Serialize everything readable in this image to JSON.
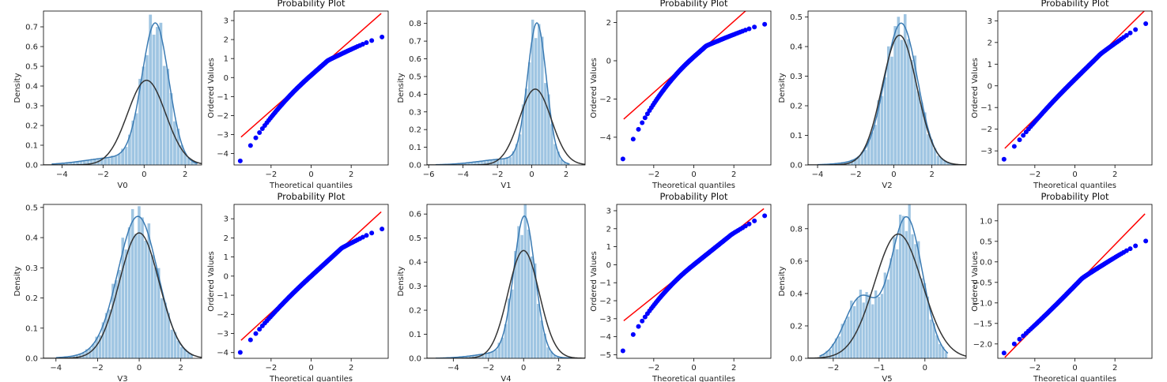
{
  "chart_data": [
    {
      "kind": "hist",
      "var": "V0",
      "type": "histogram",
      "xlabel": "V0",
      "ylabel": "Density",
      "xlim": [
        -4.9,
        2.8
      ],
      "ylim": [
        0,
        0.78
      ],
      "xticks": [
        -4,
        -2,
        0,
        2
      ],
      "yticks": [
        0,
        0.1,
        0.2,
        0.3,
        0.4,
        0.5,
        0.6,
        0.7
      ],
      "bin_range": [
        -4.5,
        2.6
      ],
      "peak": 0.55,
      "peak_sd": 0.65,
      "tail_w": 0.12,
      "tail_mean": -1.2,
      "tail_sd": 1.6,
      "norm_mu": 0.12,
      "norm_sd": 0.93
    },
    {
      "kind": "qq",
      "var": "V0",
      "type": "scatter",
      "title": "Probability Plot",
      "xlabel": "Theoretical quantiles",
      "ylabel": "Ordered Values",
      "xlim": [
        -3.85,
        3.85
      ],
      "ylim": [
        -4.6,
        3.5
      ],
      "xticks": [
        -2,
        0,
        2
      ],
      "yticks": [
        -4,
        -3,
        -2,
        -1,
        0,
        1,
        2,
        3
      ],
      "line": {
        "slope": 0.93,
        "intercept": 0.12
      },
      "low": -4.35,
      "high": 2.12,
      "knee": 0.8,
      "upper_scale": 0.55
    },
    {
      "kind": "hist",
      "var": "V1",
      "type": "histogram",
      "xlabel": "V1",
      "ylabel": "Density",
      "xlim": [
        -6.1,
        3.1
      ],
      "ylim": [
        0,
        0.87
      ],
      "xticks": [
        -6,
        -4,
        -2,
        0,
        2
      ],
      "yticks": [
        0,
        0.1,
        0.2,
        0.3,
        0.4,
        0.5,
        0.6,
        0.7,
        0.8
      ],
      "bin_range": [
        -5.6,
        2.2
      ],
      "peak": 0.3,
      "peak_sd": 0.55,
      "tail_w": 0.12,
      "tail_mean": -1.3,
      "tail_sd": 1.7,
      "norm_mu": 0.2,
      "norm_sd": 0.93
    },
    {
      "kind": "qq",
      "var": "V1",
      "type": "scatter",
      "title": "Probability Plot",
      "xlabel": "Theoretical quantiles",
      "ylabel": "Ordered Values",
      "xlim": [
        -3.85,
        3.85
      ],
      "ylim": [
        -5.45,
        2.6
      ],
      "xticks": [
        -2,
        0,
        2
      ],
      "yticks": [
        -4,
        -2,
        0,
        2
      ],
      "line": {
        "slope": 0.93,
        "intercept": 0.2
      },
      "low": -5.1,
      "high": 1.9,
      "knee": 0.6,
      "upper_scale": 0.6
    },
    {
      "kind": "hist",
      "var": "V2",
      "type": "histogram",
      "xlabel": "V2",
      "ylabel": "Density",
      "xlim": [
        -4.5,
        3.8
      ],
      "ylim": [
        0,
        0.52
      ],
      "xticks": [
        -4,
        -2,
        0,
        2
      ],
      "yticks": [
        0,
        0.1,
        0.2,
        0.3,
        0.4,
        0.5
      ],
      "bin_range": [
        -4.0,
        3.3
      ],
      "peak": 0.4,
      "peak_sd": 0.85,
      "tail_w": 0.06,
      "tail_mean": -0.8,
      "tail_sd": 1.3,
      "norm_mu": 0.3,
      "norm_sd": 0.91
    },
    {
      "kind": "qq",
      "var": "V2",
      "type": "scatter",
      "title": "Probability Plot",
      "xlabel": "Theoretical quantiles",
      "ylabel": "Ordered Values",
      "xlim": [
        -3.85,
        3.85
      ],
      "ylim": [
        -3.65,
        3.45
      ],
      "xticks": [
        -2,
        0,
        2
      ],
      "yticks": [
        -3,
        -2,
        -1,
        0,
        1,
        2,
        3
      ],
      "line": {
        "slope": 0.91,
        "intercept": 0.3
      },
      "low": -3.35,
      "high": 2.85,
      "knee": 1.2,
      "upper_scale": 0.88
    },
    {
      "kind": "hist",
      "var": "V3",
      "type": "histogram",
      "xlabel": "V3",
      "ylabel": "Density",
      "xlim": [
        -4.6,
        3.0
      ],
      "ylim": [
        0,
        0.51
      ],
      "xticks": [
        -4,
        -2,
        0,
        2
      ],
      "yticks": [
        0,
        0.1,
        0.2,
        0.3,
        0.4,
        0.5
      ],
      "bin_range": [
        -4.0,
        2.6
      ],
      "peak": -0.05,
      "peak_sd": 0.95,
      "tail_w": 0.05,
      "tail_mean": -1.2,
      "tail_sd": 1.4,
      "norm_mu": 0.0,
      "norm_sd": 0.96
    },
    {
      "kind": "qq",
      "var": "V3",
      "type": "scatter",
      "title": "Probability Plot",
      "xlabel": "Theoretical quantiles",
      "ylabel": "Ordered Values",
      "xlim": [
        -3.85,
        3.85
      ],
      "ylim": [
        -4.3,
        3.75
      ],
      "xticks": [
        -2,
        0,
        2
      ],
      "yticks": [
        -4,
        -3,
        -2,
        -1,
        0,
        1,
        2,
        3
      ],
      "line": {
        "slope": 0.96,
        "intercept": 0.0
      },
      "low": -3.95,
      "high": 2.45,
      "knee": 1.5,
      "upper_scale": 0.7
    },
    {
      "kind": "hist",
      "var": "V4",
      "type": "histogram",
      "xlabel": "V4",
      "ylabel": "Density",
      "xlim": [
        -5.5,
        3.5
      ],
      "ylim": [
        0,
        0.64
      ],
      "xticks": [
        -4,
        -2,
        0,
        2
      ],
      "yticks": [
        0,
        0.1,
        0.2,
        0.3,
        0.4,
        0.5,
        0.6
      ],
      "bin_range": [
        -5.0,
        2.8
      ],
      "peak": 0.05,
      "peak_sd": 0.6,
      "tail_w": 0.1,
      "tail_mean": -1.0,
      "tail_sd": 1.5,
      "norm_mu": 0.0,
      "norm_sd": 0.89
    },
    {
      "kind": "qq",
      "var": "V4",
      "type": "scatter",
      "title": "Probability Plot",
      "xlabel": "Theoretical quantiles",
      "ylabel": "Ordered Values",
      "xlim": [
        -3.85,
        3.85
      ],
      "ylim": [
        -5.2,
        3.35
      ],
      "xticks": [
        -2,
        0,
        2
      ],
      "yticks": [
        -5,
        -4,
        -3,
        -2,
        -1,
        0,
        1,
        2,
        3
      ],
      "line": {
        "slope": 0.89,
        "intercept": 0.0
      },
      "low": -4.75,
      "high": 2.7,
      "knee": 1.8,
      "upper_scale": 0.85
    },
    {
      "kind": "hist",
      "var": "V5",
      "type": "histogram",
      "xlabel": "V5",
      "ylabel": "Density",
      "xlim": [
        -2.55,
        0.9
      ],
      "ylim": [
        0,
        0.95
      ],
      "xticks": [
        -2,
        -1,
        0
      ],
      "yticks": [
        0,
        0.2,
        0.4,
        0.6,
        0.8
      ],
      "bin_range": [
        -2.3,
        0.5
      ],
      "peak": -0.4,
      "peak_sd": 0.35,
      "tail_w": 0.3,
      "tail_mean": -1.4,
      "tail_sd": 0.35,
      "norm_mu": -0.58,
      "norm_sd": 0.52
    },
    {
      "kind": "qq",
      "var": "V5",
      "type": "scatter",
      "title": "Probability Plot",
      "xlabel": "Theoretical quantiles",
      "ylabel": "Ordered Values",
      "xlim": [
        -3.85,
        3.85
      ],
      "ylim": [
        -2.35,
        1.4
      ],
      "xticks": [
        -2,
        0,
        2
      ],
      "yticks": [
        -2.0,
        -1.5,
        -1.0,
        -0.5,
        0.0,
        0.5,
        1.0
      ],
      "line": {
        "slope": 0.5,
        "intercept": -0.58
      },
      "low": -2.2,
      "high": 0.5,
      "knee": 0.3,
      "upper_scale": 0.4
    }
  ]
}
